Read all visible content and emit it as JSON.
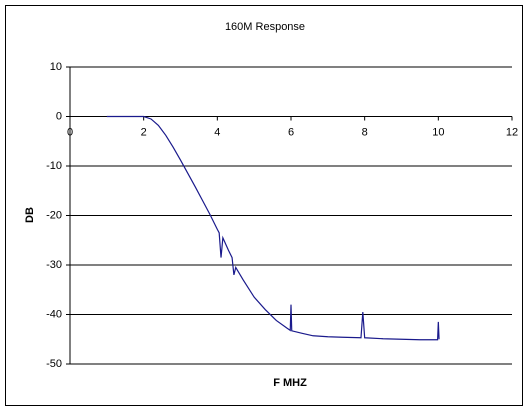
{
  "chart_data": {
    "type": "line",
    "title": "160M Response",
    "x_label": "F MHZ",
    "y_label": "DB",
    "x": [
      1,
      1.5,
      2,
      2.2,
      2.4,
      2.6,
      2.8,
      3,
      3.2,
      3.4,
      3.6,
      3.8,
      4,
      4.05,
      4.1,
      4.15,
      4.3,
      4.4,
      4.45,
      4.5,
      4.7,
      5,
      5.3,
      5.6,
      5.9,
      5.98,
      6,
      6.02,
      6.3,
      6.6,
      7,
      7.4,
      7.9,
      7.95,
      8,
      8.5,
      9,
      9.5,
      9.98,
      10,
      10.02
    ],
    "series": [
      {
        "color": "#1a1a8c",
        "values": [
          0,
          0,
          0,
          -0.5,
          -1.8,
          -3.8,
          -6.2,
          -8.8,
          -11.5,
          -14.2,
          -17,
          -19.8,
          -22.8,
          -23.5,
          -28.5,
          -24.5,
          -27,
          -28.5,
          -32,
          -30.5,
          -33,
          -36.5,
          -39,
          -41.2,
          -42.8,
          -43.2,
          -38,
          -43.3,
          -43.8,
          -44.3,
          -44.5,
          -44.6,
          -44.7,
          -39.5,
          -44.7,
          -44.9,
          -45,
          -45.1,
          -45.1,
          -41.5,
          -45
        ]
      }
    ],
    "xlim": [
      0,
      12
    ],
    "xticks": [
      0,
      2,
      4,
      6,
      8,
      10,
      12
    ],
    "ylim": [
      -50,
      10
    ],
    "yticks": [
      10,
      0,
      -10,
      -20,
      -30,
      -40,
      -50
    ],
    "grid": true
  }
}
